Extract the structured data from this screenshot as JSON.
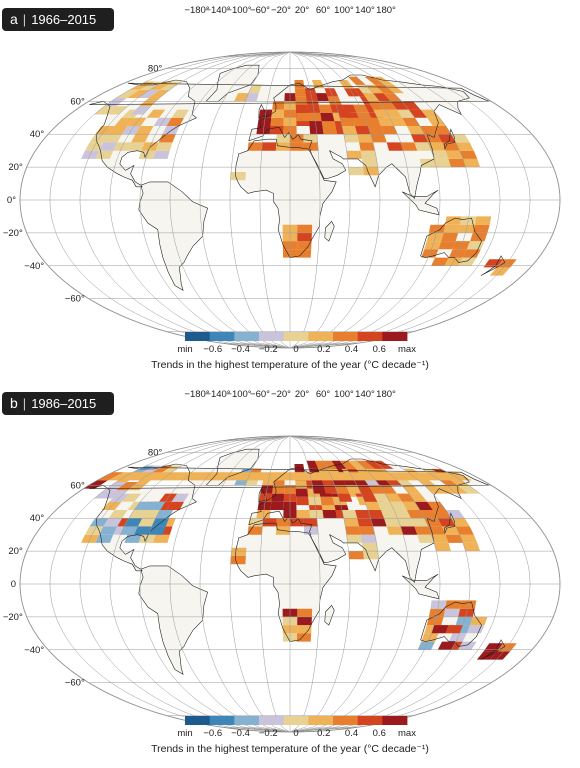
{
  "panels": [
    {
      "letter": "a",
      "period": "1966–2015",
      "lon_labels": [
        "−180°",
        "−140°",
        "−100°",
        "−60°",
        "−20°",
        "20°",
        "60°",
        "100°",
        "140°",
        "180°"
      ],
      "lat_labels": [
        "80°",
        "60°",
        "40°",
        "20°",
        "0°",
        "−20°",
        "−40°",
        "−60°"
      ],
      "colorbar": {
        "tick_labels": [
          "min",
          "−0.6",
          "−0.4",
          "−0.2",
          "0",
          "0.2",
          "0.4",
          "0.6",
          "max"
        ],
        "title": "Trends in the highest temperature of the year (°C decade⁻¹)"
      },
      "hot_regions": [
        "Europe",
        "Siberia",
        "East Asia",
        "Southern Africa",
        "Australia"
      ]
    },
    {
      "letter": "b",
      "period": "1986–2015",
      "lon_labels": [
        "−180°",
        "−140°",
        "−100°",
        "−60°",
        "−20°",
        "20°",
        "60°",
        "100°",
        "140°",
        "180°"
      ],
      "lat_labels": [
        "80°",
        "60°",
        "40°",
        "20°",
        "0",
        "−20°",
        "−40°",
        "−60°"
      ],
      "colorbar": {
        "tick_labels": [
          "min",
          "−0.6",
          "−0.4",
          "−0.2",
          "0",
          "0.2",
          "0.4",
          "0.6",
          "max"
        ],
        "title": "Trends in the highest temperature of the year (°C decade⁻¹)"
      },
      "hot_regions": [
        "Europe",
        "Siberia",
        "East Asia",
        "Southern Africa",
        "Australia"
      ]
    }
  ],
  "colorbar_colors": [
    "#1d5a8e",
    "#3f86b8",
    "#86b2d2",
    "#c9c3dc",
    "#e7d193",
    "#efb257",
    "#e77f2f",
    "#d44420",
    "#9b1a1e"
  ]
}
